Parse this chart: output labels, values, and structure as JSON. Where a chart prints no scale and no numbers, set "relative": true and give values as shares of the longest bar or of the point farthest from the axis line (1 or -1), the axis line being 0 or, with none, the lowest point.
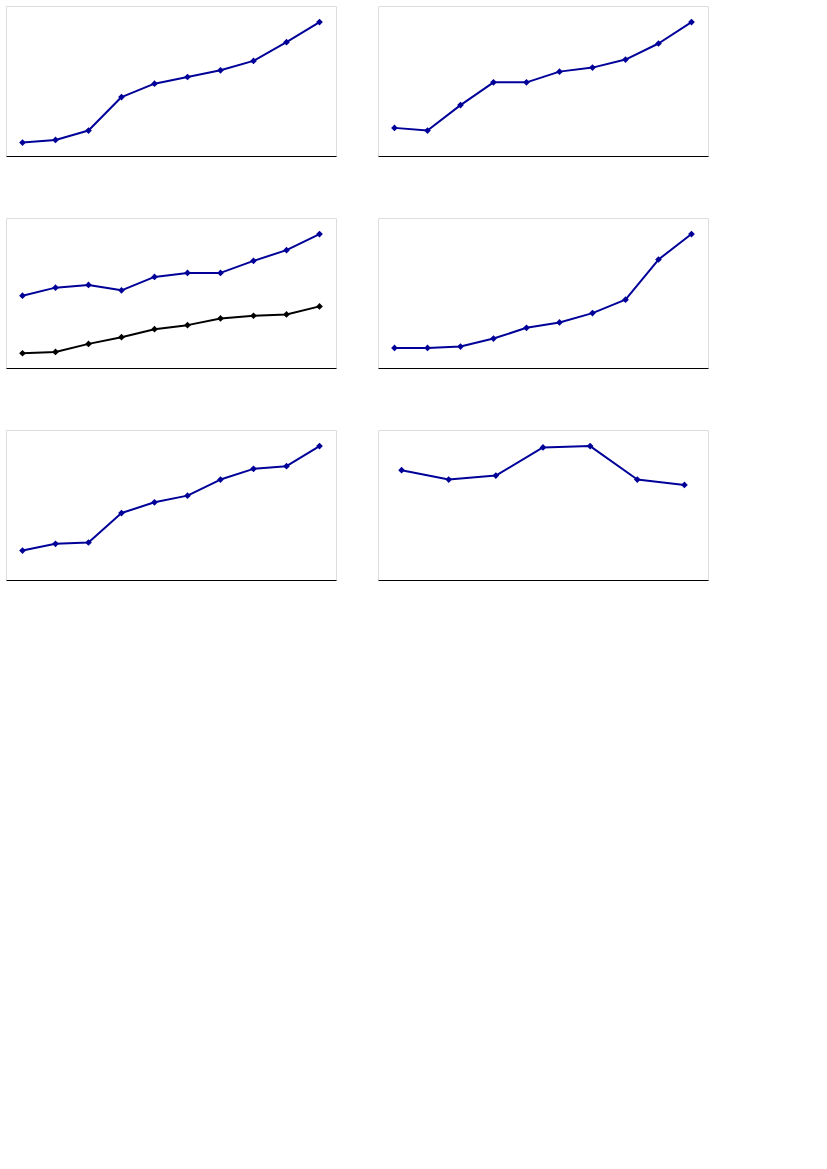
{
  "chart_data": [
    {
      "type": "line",
      "relative": true,
      "marker": "diamond",
      "line_style": "solid",
      "grid": false,
      "tick_labels": false,
      "categories": [
        null,
        null,
        null,
        null,
        null,
        null,
        null,
        null,
        null,
        null
      ],
      "series": [
        {
          "color": "#000099",
          "values": [
            0.1,
            0.12,
            0.19,
            0.44,
            0.54,
            0.59,
            0.64,
            0.71,
            0.85,
            1
          ]
        }
      ]
    },
    {
      "type": "line",
      "relative": true,
      "marker": "diamond",
      "line_style": "solid",
      "grid": false,
      "tick_labels": false,
      "categories": [
        null,
        null,
        null,
        null,
        null,
        null,
        null,
        null,
        null,
        null
      ],
      "series": [
        {
          "color": "#000099",
          "values": [
            0.21,
            0.19,
            0.38,
            0.55,
            0.55,
            0.63,
            0.66,
            0.72,
            0.84,
            1
          ]
        }
      ]
    },
    {
      "type": "line",
      "relative": true,
      "marker": "diamond",
      "line_style": "solid",
      "grid": false,
      "tick_labels": false,
      "categories": [
        null,
        null,
        null,
        null,
        null,
        null,
        null,
        null,
        null,
        null
      ],
      "series": [
        {
          "color": "#000099",
          "values": [
            0.54,
            0.6,
            0.62,
            0.58,
            0.68,
            0.71,
            0.71,
            0.8,
            0.88,
            1
          ]
        },
        {
          "color": "#000000",
          "values": [
            0.11,
            0.12,
            0.18,
            0.23,
            0.29,
            0.32,
            0.37,
            0.39,
            0.4,
            0.46
          ]
        }
      ]
    },
    {
      "type": "line",
      "relative": true,
      "marker": "diamond",
      "line_style": "solid",
      "grid": false,
      "tick_labels": false,
      "categories": [
        null,
        null,
        null,
        null,
        null,
        null,
        null,
        null,
        null,
        null
      ],
      "series": [
        {
          "color": "#000099",
          "values": [
            0.15,
            0.15,
            0.16,
            0.22,
            0.3,
            0.34,
            0.41,
            0.51,
            0.81,
            1
          ]
        }
      ]
    },
    {
      "type": "line",
      "relative": true,
      "marker": "diamond",
      "line_style": "solid",
      "grid": false,
      "tick_labels": false,
      "categories": [
        null,
        null,
        null,
        null,
        null,
        null,
        null,
        null,
        null,
        null
      ],
      "series": [
        {
          "color": "#000099",
          "values": [
            0.22,
            0.27,
            0.28,
            0.5,
            0.58,
            0.63,
            0.75,
            0.83,
            0.85,
            1
          ]
        }
      ]
    },
    {
      "type": "line",
      "relative": true,
      "marker": "diamond",
      "line_style": "solid",
      "grid": false,
      "tick_labels": false,
      "categories": [
        null,
        null,
        null,
        null,
        null,
        null,
        null
      ],
      "series": [
        {
          "color": "#000099",
          "values": [
            0.82,
            0.75,
            0.78,
            0.99,
            1,
            0.75,
            0.71
          ]
        }
      ]
    }
  ]
}
